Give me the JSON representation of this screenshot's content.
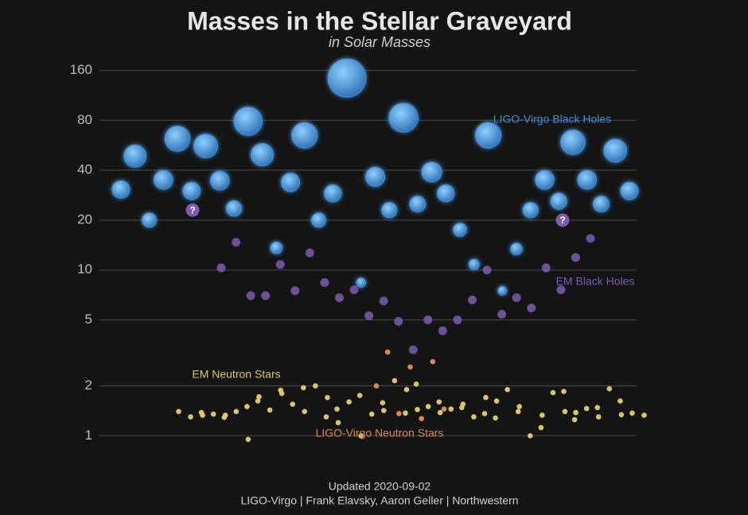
{
  "chart_data": {
    "type": "scatter",
    "title": "Masses in the Stellar Graveyard",
    "subtitle": "in Solar Masses",
    "log_scale": true,
    "grid": true,
    "ylim": [
      0.85,
      210
    ],
    "yticks": [
      1,
      2,
      5,
      10,
      20,
      40,
      80,
      160
    ],
    "series": [
      {
        "name": "LIGO-Virgo Black Holes",
        "color": "#3f8fd8",
        "values": [
          30.6,
          48.7,
          20,
          35,
          62,
          30,
          56,
          34.6,
          23.5,
          79,
          49.6,
          13.6,
          33.8,
          65,
          20,
          29,
          144,
          8.4,
          36.5,
          23,
          83,
          25,
          39,
          29,
          17.5,
          10.8,
          65,
          7.5,
          13.4,
          23,
          35,
          26,
          59,
          35,
          25,
          52.5,
          30
        ]
      },
      {
        "name": "EM Black Holes",
        "color": "#7b5cb0",
        "values": [
          10.3,
          14.7,
          7,
          7,
          10.8,
          7.5,
          12.7,
          8.4,
          6.8,
          7.6,
          5.3,
          6.5,
          4.9,
          3.3,
          5,
          4.3,
          5,
          6.6,
          10,
          5.4,
          6.8,
          5.9,
          10.3,
          7.6,
          11.9,
          15.5
        ]
      },
      {
        "name": "EM Neutron Stars",
        "color": "#d8c766",
        "values": [
          1.4,
          1.3,
          1.33,
          1.38,
          1.35,
          1.33,
          1.29,
          1.4,
          0.95,
          1.5,
          1.72,
          1.62,
          1.43,
          1.8,
          1.88,
          1.55,
          1.4,
          1.95,
          2.0,
          1.7,
          1.3,
          1.2,
          1.45,
          1.6,
          1.0,
          1.75,
          1.35,
          1.42,
          1.58,
          2.15,
          1.9,
          1.37,
          1.44,
          2.05,
          1.5,
          1.38,
          1.6,
          1.45,
          1.55,
          1.48,
          1.3,
          1.7,
          1.36,
          1.62,
          1.28,
          1.9,
          1.5,
          1.4,
          1.0,
          1.33,
          1.12,
          1.82,
          1.4,
          1.85,
          1.38,
          1.25,
          1.46,
          1.3,
          1.48,
          1.92,
          1.34,
          1.62,
          1.37,
          1.33
        ]
      },
      {
        "name": "LIGO-Virgo Neutron Stars",
        "color": "#d98a4e",
        "values": [
          2.0,
          3.2,
          1.36,
          2.6,
          1.27,
          2.8,
          1.45
        ]
      }
    ],
    "unknown_objects": {
      "label": "?",
      "color": "#7b5cb0",
      "values": [
        23,
        20
      ]
    },
    "footer": [
      "Updated 2020-09-02",
      "LIGO-Virgo | Frank Elavsky, Aaron Geller | Northwestern"
    ]
  }
}
